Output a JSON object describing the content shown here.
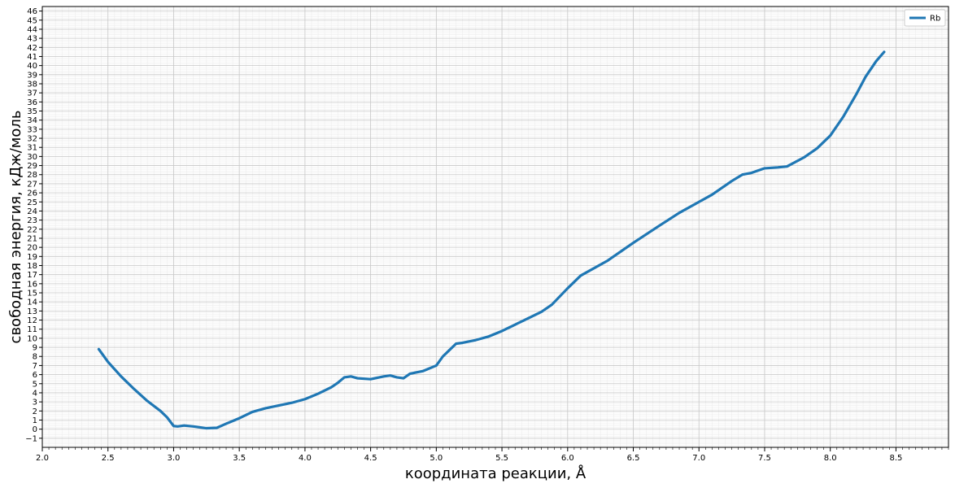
{
  "chart_data": {
    "type": "line",
    "title": "",
    "xlabel": "координата реакции, Å",
    "ylabel": "свободная энергия, кДж/моль",
    "xlim": [
      2.0,
      8.9
    ],
    "ylim": [
      -2.0,
      46.5
    ],
    "x_major_ticks": [
      2.0,
      2.5,
      3.0,
      3.5,
      4.0,
      4.5,
      5.0,
      5.5,
      6.0,
      6.5,
      7.0,
      7.5,
      8.0,
      8.5
    ],
    "x_tick_labels": [
      "2.0",
      "2.5",
      "3.0",
      "3.5",
      "4.0",
      "4.5",
      "5.0",
      "5.5",
      "6.0",
      "6.5",
      "7.0",
      "7.5",
      "8.0",
      "8.5"
    ],
    "x_minor_step": 0.05,
    "y_major_ticks": [
      -1,
      0,
      1,
      2,
      3,
      4,
      5,
      6,
      7,
      8,
      9,
      10,
      11,
      12,
      13,
      14,
      15,
      16,
      17,
      18,
      19,
      20,
      21,
      22,
      23,
      24,
      25,
      26,
      27,
      28,
      29,
      30,
      31,
      32,
      33,
      34,
      35,
      36,
      37,
      38,
      39,
      40,
      41,
      42,
      43,
      44,
      45,
      46
    ],
    "y_tick_labels": [
      "−1",
      "0",
      "1",
      "2",
      "3",
      "4",
      "5",
      "6",
      "7",
      "8",
      "9",
      "10",
      "11",
      "12",
      "13",
      "14",
      "15",
      "16",
      "17",
      "18",
      "19",
      "20",
      "21",
      "22",
      "23",
      "24",
      "25",
      "26",
      "27",
      "28",
      "29",
      "30",
      "31",
      "32",
      "33",
      "34",
      "35",
      "36",
      "37",
      "38",
      "39",
      "40",
      "41",
      "42",
      "43",
      "44",
      "45",
      "46"
    ],
    "y_minor_step": 0.2,
    "grid": true,
    "legend_position": "top-right",
    "series": [
      {
        "name": "Rb",
        "color": "#1f77b4",
        "x": [
          2.43,
          2.5,
          2.6,
          2.7,
          2.8,
          2.9,
          2.95,
          3.0,
          3.03,
          3.08,
          3.15,
          3.25,
          3.33,
          3.4,
          3.5,
          3.6,
          3.7,
          3.8,
          3.9,
          4.0,
          4.1,
          4.2,
          4.25,
          4.3,
          4.35,
          4.4,
          4.5,
          4.6,
          4.65,
          4.7,
          4.75,
          4.8,
          4.9,
          5.0,
          5.05,
          5.1,
          5.15,
          5.2,
          5.3,
          5.4,
          5.5,
          5.6,
          5.7,
          5.8,
          5.88,
          6.0,
          6.1,
          6.3,
          6.5,
          6.7,
          6.85,
          7.0,
          7.1,
          7.25,
          7.33,
          7.4,
          7.5,
          7.6,
          7.67,
          7.8,
          7.9,
          8.0,
          8.1,
          8.2,
          8.27,
          8.35,
          8.41
        ],
        "y": [
          8.8,
          7.4,
          5.8,
          4.4,
          3.1,
          2.0,
          1.3,
          0.35,
          0.3,
          0.4,
          0.3,
          0.1,
          0.15,
          0.6,
          1.2,
          1.9,
          2.3,
          2.6,
          2.9,
          3.3,
          3.9,
          4.6,
          5.1,
          5.7,
          5.8,
          5.6,
          5.5,
          5.8,
          5.9,
          5.7,
          5.6,
          6.1,
          6.4,
          7.0,
          8.0,
          8.7,
          9.4,
          9.5,
          9.8,
          10.2,
          10.8,
          11.5,
          12.2,
          12.9,
          13.7,
          15.5,
          16.9,
          18.5,
          20.5,
          22.4,
          23.8,
          25.0,
          25.8,
          27.3,
          28.0,
          28.2,
          28.7,
          28.8,
          28.9,
          29.9,
          30.9,
          32.3,
          34.4,
          36.9,
          38.8,
          40.5,
          41.5
        ]
      }
    ]
  }
}
